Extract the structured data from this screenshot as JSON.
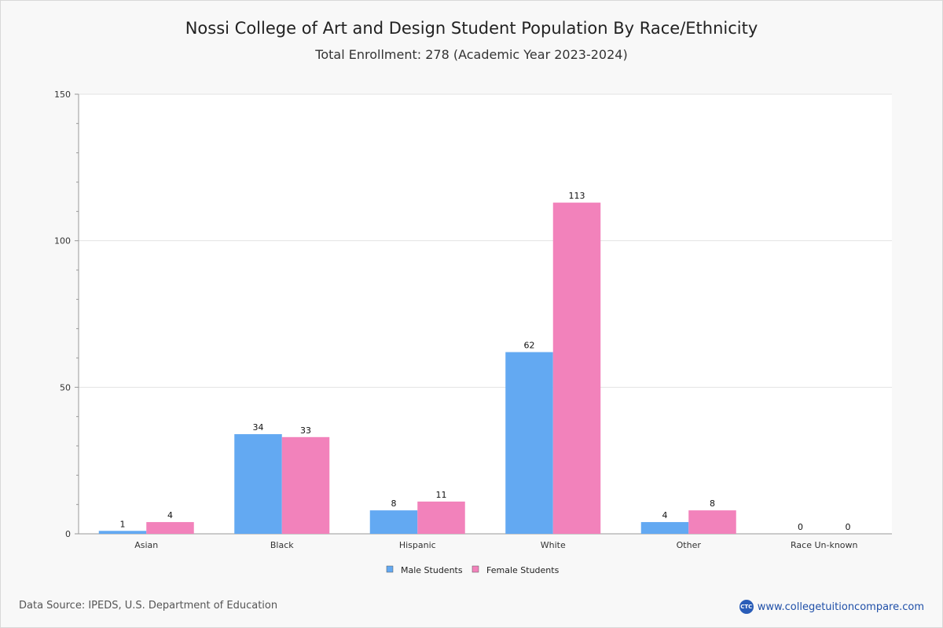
{
  "header": {
    "title": "Nossi College of Art and Design Student Population By Race/Ethnicity",
    "subtitle": "Total Enrollment: 278 (Academic Year 2023-2024)"
  },
  "footer": {
    "source": "Data Source: IPEDS, U.S. Department of Education",
    "brand": "www.collegetuitioncompare.com",
    "brand_logo": "CTC"
  },
  "chart_data": {
    "type": "bar",
    "title": "Nossi College of Art and Design Student Population By Race/Ethnicity",
    "subtitle": "Total Enrollment: 278 (Academic Year 2023-2024)",
    "xlabel": "",
    "ylabel": "",
    "ylim": [
      0,
      150
    ],
    "yticks": [
      0,
      50,
      100,
      150
    ],
    "categories": [
      "Asian",
      "Black",
      "Hispanic",
      "White",
      "Other",
      "Race Un-known"
    ],
    "series": [
      {
        "name": "Male Students",
        "color": "#63a9f2",
        "values": [
          1,
          34,
          8,
          62,
          4,
          0
        ]
      },
      {
        "name": "Female Students",
        "color": "#f282bb",
        "values": [
          4,
          33,
          11,
          113,
          8,
          0
        ]
      }
    ],
    "grid": true,
    "legend": "bottom-center"
  }
}
